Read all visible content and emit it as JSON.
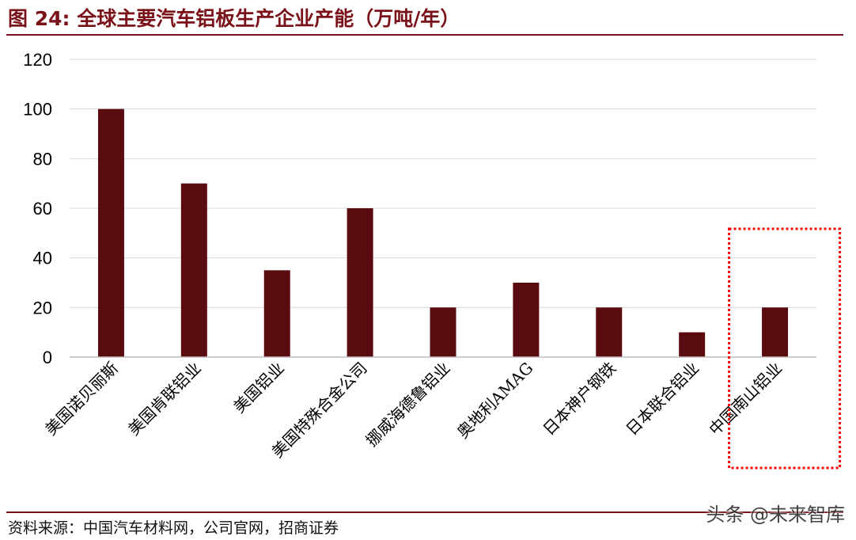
{
  "figure": {
    "title": "图 24:  全球主要汽车铝板生产企业产能（万吨/年）",
    "source": "资料来源：中国汽车材料网，公司官网，招商证券",
    "watermark": "头条 @未来智库"
  },
  "colors": {
    "bar": "#5a0b0f",
    "title": "#7a1219",
    "rule": "#7a1219",
    "highlight": "#ff0000"
  },
  "chart_data": {
    "type": "bar",
    "title": "",
    "xlabel": "",
    "ylabel": "",
    "categories": [
      "美国诺贝丽斯",
      "美国肯联铝业",
      "美国铝业",
      "美国特殊合金公司",
      "挪威海德鲁铝业",
      "奥地利AMAG",
      "日本神户钢铁",
      "日本联合铝业",
      "中国南山铝业"
    ],
    "values": [
      100,
      70,
      35,
      60,
      20,
      30,
      20,
      10,
      20
    ],
    "ylim": [
      0,
      120
    ],
    "yticks": [
      0,
      20,
      40,
      60,
      80,
      100,
      120
    ],
    "grid": true,
    "legend": "none",
    "highlighted_category": "中国南山铝业",
    "highlight_style": "red dotted box"
  }
}
